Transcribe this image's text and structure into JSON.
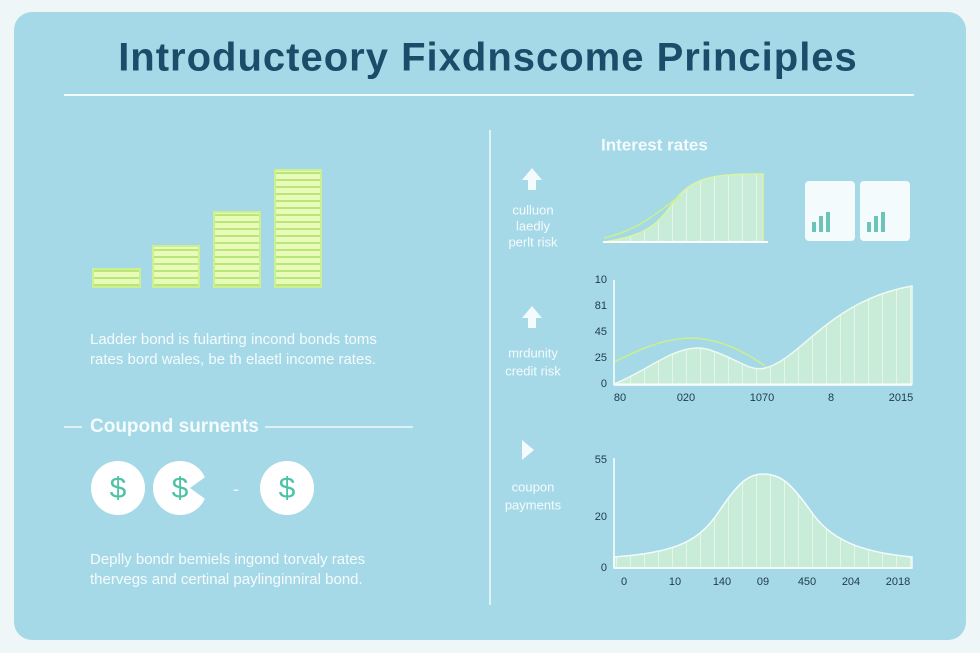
{
  "header": {
    "title": "Introducteory Fixdnscome Principles"
  },
  "left": {
    "ladder_text": [
      "Ladder bond is fularting incond bonds toms",
      "rates bord wales, be th elaetl income rates."
    ],
    "coupon_heading": "Coupond surnents",
    "coupon_icons": [
      "$",
      "$",
      "-",
      "$"
    ],
    "coupon_text": [
      "Deplly bondr bemiels ingond torvaly rates",
      "thervegs and certinal paylinginniral bond."
    ]
  },
  "right": {
    "rows": [
      {
        "title": "Interest rates",
        "label": [
          "culluon",
          "laedly",
          "perlt risk"
        ]
      },
      {
        "label": [
          "mrdunity",
          "credit risk"
        ],
        "y_ticks": [
          "10",
          "81",
          "45",
          "25",
          "0"
        ],
        "x_ticks": [
          "80",
          "020",
          "1070",
          "8",
          "2015"
        ]
      },
      {
        "label": [
          "coupon",
          "payments"
        ],
        "y_ticks": [
          "55",
          "20",
          "0"
        ],
        "x_ticks": [
          "0",
          "10",
          "140",
          "09",
          "450",
          "204",
          "2018"
        ]
      }
    ]
  }
}
